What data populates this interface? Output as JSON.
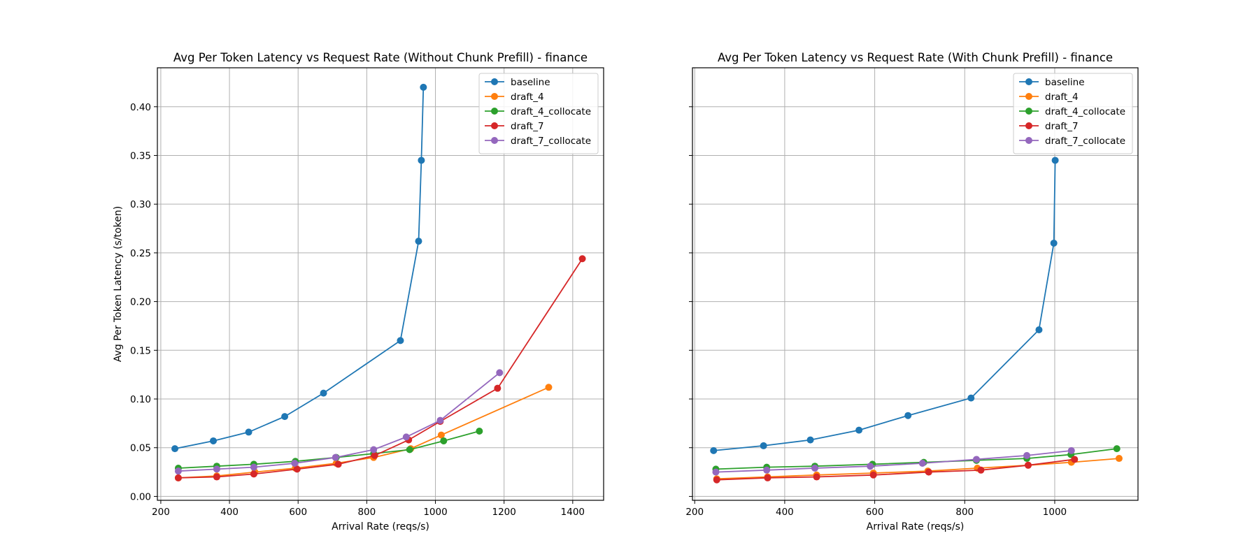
{
  "chart_data": [
    {
      "type": "line",
      "title": "Avg Per Token Latency vs Request Rate (Without Chunk Prefill) - finance",
      "xlabel": "Arrival Rate (reqs/s)",
      "ylabel": "Avg Per Token Latency (s/token)",
      "xlim": [
        190,
        1490
      ],
      "ylim": [
        -0.004,
        0.44
      ],
      "xticks": [
        200,
        400,
        600,
        800,
        1000,
        1200,
        1400
      ],
      "yticks": [
        0.0,
        0.05,
        0.1,
        0.15,
        0.2,
        0.25,
        0.3,
        0.35,
        0.4
      ],
      "grid": true,
      "legend_position": "top-right",
      "series": [
        {
          "name": "baseline",
          "color": "#1f77b4",
          "points": [
            [
              241,
              0.049
            ],
            [
              353,
              0.057
            ],
            [
              456,
              0.066
            ],
            [
              561,
              0.082
            ],
            [
              674,
              0.106
            ],
            [
              898,
              0.16
            ],
            [
              951,
              0.262
            ],
            [
              959,
              0.345
            ],
            [
              965,
              0.42
            ]
          ]
        },
        {
          "name": "draft_4",
          "color": "#ff7f0e",
          "points": [
            [
              251,
              0.019
            ],
            [
              363,
              0.021
            ],
            [
              474,
              0.025
            ],
            [
              592,
              0.029
            ],
            [
              711,
              0.034
            ],
            [
              820,
              0.04
            ],
            [
              928,
              0.049
            ],
            [
              1017,
              0.063
            ],
            [
              1330,
              0.112
            ]
          ]
        },
        {
          "name": "draft_4_collocate",
          "color": "#2ca02c",
          "points": [
            [
              251,
              0.029
            ],
            [
              363,
              0.031
            ],
            [
              471,
              0.033
            ],
            [
              592,
              0.036
            ],
            [
              711,
              0.04
            ],
            [
              820,
              0.044
            ],
            [
              925,
              0.048
            ],
            [
              1024,
              0.057
            ],
            [
              1128,
              0.067
            ]
          ]
        },
        {
          "name": "draft_7",
          "color": "#d62728",
          "points": [
            [
              251,
              0.019
            ],
            [
              363,
              0.02
            ],
            [
              471,
              0.023
            ],
            [
              597,
              0.028
            ],
            [
              717,
              0.033
            ],
            [
              823,
              0.042
            ],
            [
              922,
              0.058
            ],
            [
              1014,
              0.077
            ],
            [
              1181,
              0.111
            ],
            [
              1428,
              0.244
            ]
          ]
        },
        {
          "name": "draft_7_collocate",
          "color": "#9467bd",
          "points": [
            [
              251,
              0.026
            ],
            [
              363,
              0.028
            ],
            [
              471,
              0.03
            ],
            [
              590,
              0.034
            ],
            [
              709,
              0.04
            ],
            [
              820,
              0.048
            ],
            [
              915,
              0.061
            ],
            [
              1014,
              0.078
            ],
            [
              1187,
              0.127
            ]
          ]
        }
      ]
    },
    {
      "type": "line",
      "title": "Avg Per Token Latency vs Request Rate (With Chunk Prefill) - finance",
      "xlabel": "Arrival Rate (reqs/s)",
      "ylabel": "",
      "xlim": [
        195,
        1185
      ],
      "ylim": [
        -0.004,
        0.44
      ],
      "xticks": [
        200,
        400,
        600,
        800,
        1000
      ],
      "yticks": [],
      "grid": true,
      "legend_position": "top-right",
      "series": [
        {
          "name": "baseline",
          "color": "#1f77b4",
          "points": [
            [
              242,
              0.047
            ],
            [
              353,
              0.052
            ],
            [
              457,
              0.058
            ],
            [
              565,
              0.068
            ],
            [
              674,
              0.083
            ],
            [
              814,
              0.101
            ],
            [
              965,
              0.171
            ],
            [
              998,
              0.26
            ],
            [
              1001,
              0.345
            ]
          ]
        },
        {
          "name": "draft_4",
          "color": "#ff7f0e",
          "points": [
            [
              249,
              0.018
            ],
            [
              362,
              0.02
            ],
            [
              471,
              0.022
            ],
            [
              597,
              0.024
            ],
            [
              718,
              0.026
            ],
            [
              828,
              0.029
            ],
            [
              941,
              0.032
            ],
            [
              1037,
              0.035
            ],
            [
              1143,
              0.039
            ]
          ]
        },
        {
          "name": "draft_4_collocate",
          "color": "#2ca02c",
          "points": [
            [
              247,
              0.028
            ],
            [
              360,
              0.03
            ],
            [
              467,
              0.031
            ],
            [
              595,
              0.033
            ],
            [
              709,
              0.035
            ],
            [
              826,
              0.037
            ],
            [
              938,
              0.039
            ],
            [
              1036,
              0.043
            ],
            [
              1138,
              0.049
            ]
          ]
        },
        {
          "name": "draft_7",
          "color": "#d62728",
          "points": [
            [
              249,
              0.017
            ],
            [
              362,
              0.019
            ],
            [
              471,
              0.02
            ],
            [
              597,
              0.022
            ],
            [
              720,
              0.025
            ],
            [
              836,
              0.027
            ],
            [
              941,
              0.032
            ],
            [
              1044,
              0.038
            ]
          ]
        },
        {
          "name": "draft_7_collocate",
          "color": "#9467bd",
          "points": [
            [
              247,
              0.025
            ],
            [
              360,
              0.027
            ],
            [
              467,
              0.029
            ],
            [
              590,
              0.031
            ],
            [
              706,
              0.034
            ],
            [
              826,
              0.038
            ],
            [
              938,
              0.042
            ],
            [
              1037,
              0.047
            ]
          ]
        }
      ]
    }
  ]
}
